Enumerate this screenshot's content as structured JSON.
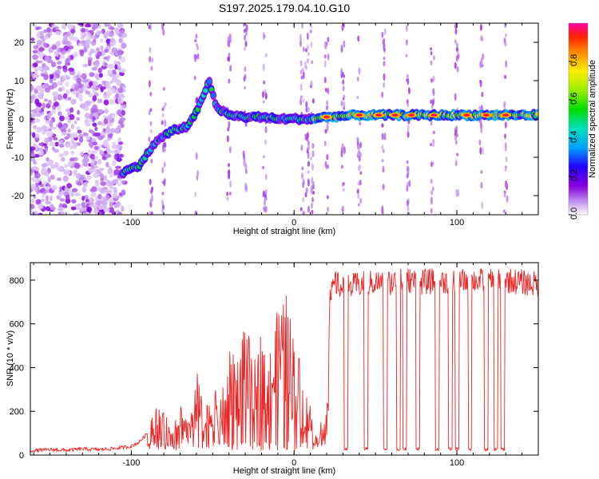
{
  "title": "S197.2025.179.04.10.G10",
  "chart_data": [
    {
      "type": "heatmap",
      "xlabel": "Height of straight line (km)",
      "ylabel": "Frequency (Hz)",
      "xlim": [
        -162,
        150
      ],
      "ylim": [
        -25,
        25
      ],
      "xticks": [
        -100,
        0,
        100
      ],
      "yticks": [
        -20,
        -10,
        0,
        10,
        20
      ],
      "grid": false,
      "colorbar": {
        "label": "Normalized spectral amplitude",
        "range": [
          0,
          1
        ],
        "ticks": [
          "0.0",
          "0.2",
          "0.4",
          "0.6",
          "0.8"
        ]
      },
      "ridge": {
        "x": [
          -105,
          -95,
          -85,
          -75,
          -65,
          -60,
          -52,
          -48,
          -40,
          -30,
          -20,
          -10,
          0,
          10,
          20,
          40,
          60,
          80,
          100,
          120,
          140,
          150
        ],
        "frequency": [
          -14,
          -12,
          -6,
          -3,
          -2,
          2,
          10,
          3,
          1,
          0.5,
          0.5,
          0,
          0,
          0,
          0.5,
          1,
          1,
          1,
          1,
          1,
          1,
          1
        ]
      }
    },
    {
      "type": "line",
      "xlabel": "Height of straight line (km)",
      "ylabel": "SNR (10 * v/v)",
      "xlim": [
        -162,
        150
      ],
      "ylim": [
        0,
        880
      ],
      "xticks": [
        -100,
        0,
        100
      ],
      "yticks": [
        0,
        200,
        400,
        600,
        800
      ],
      "grid": false,
      "series": [
        {
          "color": "#ee2222",
          "x": [
            -162,
            -150,
            -140,
            -130,
            -120,
            -110,
            -100,
            -95,
            -90,
            -85,
            -80,
            -75,
            -70,
            -65,
            -60,
            -55,
            -50,
            -45,
            -40,
            -35,
            -30,
            -25,
            -20,
            -15,
            -10,
            -5,
            0,
            5,
            10,
            15,
            20,
            22,
            25,
            30,
            40,
            50,
            60,
            70,
            80,
            90,
            100,
            110,
            120,
            130,
            140,
            150
          ],
          "y": [
            20,
            25,
            22,
            28,
            25,
            30,
            40,
            60,
            100,
            150,
            120,
            90,
            160,
            110,
            250,
            130,
            200,
            160,
            300,
            280,
            420,
            250,
            380,
            300,
            420,
            470,
            350,
            250,
            150,
            60,
            200,
            700,
            790,
            760,
            780,
            790,
            790,
            800,
            790,
            800,
            790,
            800,
            790,
            800,
            790,
            780
          ]
        }
      ],
      "dropouts_x": [
        32,
        44,
        56,
        64,
        68,
        76,
        88,
        96,
        100,
        108,
        118,
        124,
        128
      ]
    }
  ]
}
